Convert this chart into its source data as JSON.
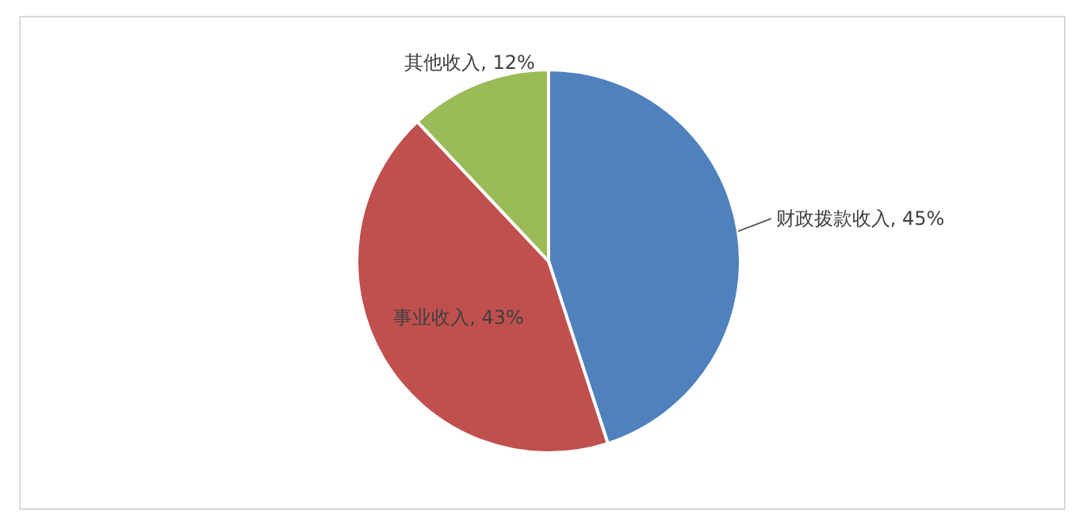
{
  "chart_data": {
    "type": "pie",
    "categories": [
      "财政拨款收入",
      "事业收入",
      "其他收入"
    ],
    "values": [
      45,
      43,
      12
    ],
    "colors": [
      "#4f81bd",
      "#c0504d",
      "#9bbb59"
    ],
    "value_labels": [
      ", 45%",
      ", 43%",
      ", 12%"
    ]
  }
}
